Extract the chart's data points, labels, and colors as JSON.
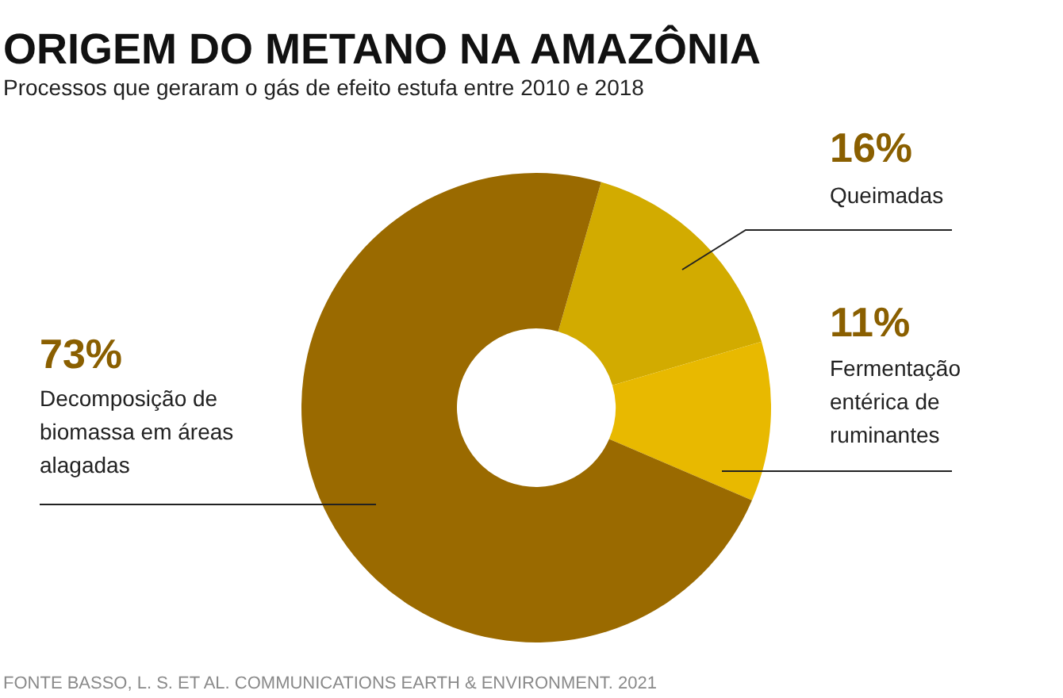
{
  "chart_data": {
    "type": "donut",
    "title": "ORIGEM DO METANO NA AMAZÔNIA",
    "subtitle": "Processos que geraram o gás de efeito estufa entre 2010 e 2018",
    "categories": [
      "Queimadas",
      "Fermentação entérica de ruminantes",
      "Decomposição de biomassa em áreas alagadas"
    ],
    "values": [
      16,
      11,
      73
    ],
    "value_labels": [
      "16%",
      "11%",
      "73%"
    ],
    "colors": [
      "#d2ab00",
      "#e8b900",
      "#9a6a00"
    ],
    "annotations": [
      "FONTE BASSO, L. S. ET AL. COMMUNICATIONS EARTH & ENVIRONMENT. 2021"
    ]
  }
}
